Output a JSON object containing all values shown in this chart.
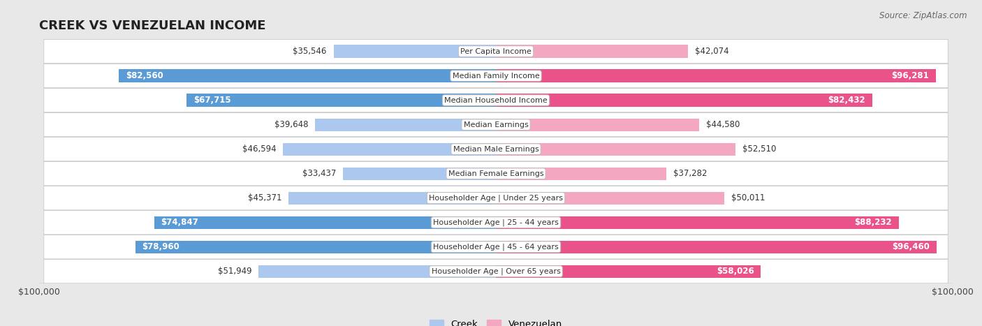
{
  "title": "CREEK VS VENEZUELAN INCOME",
  "source": "Source: ZipAtlas.com",
  "categories": [
    "Per Capita Income",
    "Median Family Income",
    "Median Household Income",
    "Median Earnings",
    "Median Male Earnings",
    "Median Female Earnings",
    "Householder Age | Under 25 years",
    "Householder Age | 25 - 44 years",
    "Householder Age | 45 - 64 years",
    "Householder Age | Over 65 years"
  ],
  "creek_values": [
    35546,
    82560,
    67715,
    39648,
    46594,
    33437,
    45371,
    74847,
    78960,
    51949
  ],
  "venezuelan_values": [
    42074,
    96281,
    82432,
    44580,
    52510,
    37282,
    50011,
    88232,
    96460,
    58026
  ],
  "creek_labels": [
    "$35,546",
    "$82,560",
    "$67,715",
    "$39,648",
    "$46,594",
    "$33,437",
    "$45,371",
    "$74,847",
    "$78,960",
    "$51,949"
  ],
  "venezuelan_labels": [
    "$42,074",
    "$96,281",
    "$82,432",
    "$44,580",
    "$52,510",
    "$37,282",
    "$50,011",
    "$88,232",
    "$96,460",
    "$58,026"
  ],
  "max_value": 100000,
  "creek_color_light": "#adc8ee",
  "creek_color_dark": "#5b9bd5",
  "venezuelan_color_light": "#f4a7c0",
  "venezuelan_color_dark": "#e9538a",
  "bg_color": "#e8e8e8",
  "title_fontsize": 13,
  "label_fontsize": 8.5,
  "bar_height": 0.52,
  "x_label_left": "$100,000",
  "x_label_right": "$100,000",
  "creek_large_threshold": 55000,
  "ven_large_threshold": 55000
}
